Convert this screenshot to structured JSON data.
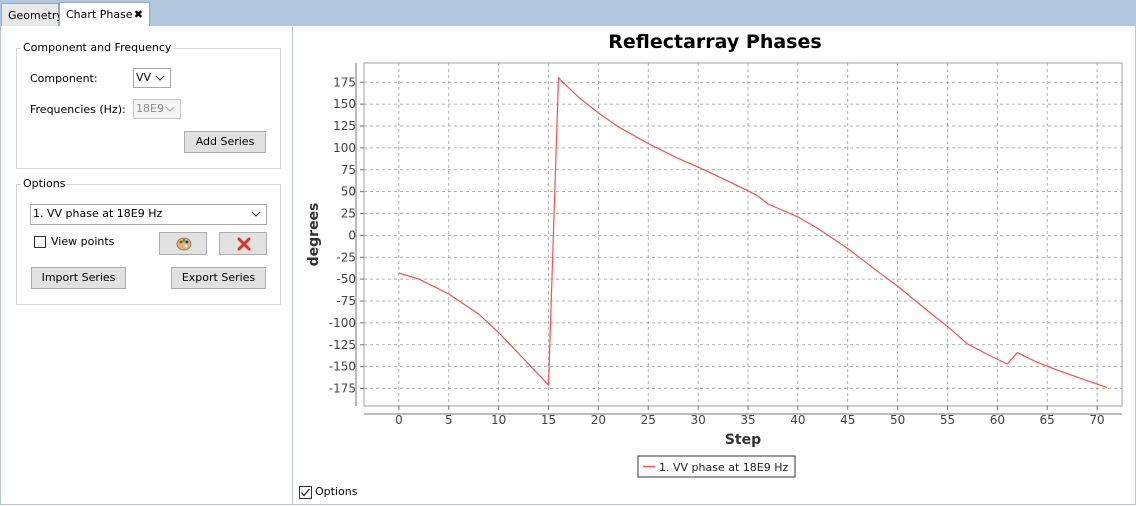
{
  "tabs": [
    {
      "label": "Geometry"
    },
    {
      "label": "Chart Phase",
      "close": "✖"
    }
  ],
  "left_panel": {
    "component_frequency": {
      "title": "Component and Frequency",
      "component_label": "Component:",
      "component_value": "VV",
      "frequencies_label": "Frequencies (Hz):",
      "frequencies_value": "18E9",
      "add_series_label": "Add Series"
    },
    "options": {
      "title": "Options",
      "series_select_value": "1. VV phase at 18E9 Hz",
      "view_points_label": "View points",
      "view_points_checked": false,
      "palette_icon": "palette-icon",
      "delete_icon": "delete-x-icon",
      "import_label": "Import Series",
      "export_label": "Export Series"
    }
  },
  "footer": {
    "options_label": "Options",
    "options_checked": true
  },
  "chart_data": {
    "type": "line",
    "title": "Reflectarray Phases",
    "xlabel": "Step",
    "ylabel": "degrees",
    "xlim": [
      -3.5,
      72.5
    ],
    "ylim": [
      -195,
      197
    ],
    "xticks": [
      0,
      5,
      10,
      15,
      20,
      25,
      30,
      35,
      40,
      45,
      50,
      55,
      60,
      65,
      70
    ],
    "yticks": [
      175,
      150,
      125,
      100,
      75,
      50,
      25,
      0,
      -25,
      -50,
      -75,
      -100,
      -125,
      -150,
      -175
    ],
    "grid": true,
    "legend": "bottom-center",
    "color": "#ff4d4d",
    "series": [
      {
        "name": "1. VV phase at 18E9 Hz",
        "x": [
          0,
          2,
          5,
          8,
          10,
          13,
          15,
          16,
          18,
          20,
          22,
          25,
          28,
          30,
          33,
          35,
          36,
          37,
          40,
          42,
          45,
          48,
          50,
          53,
          55,
          57,
          59,
          61,
          62,
          64,
          66,
          68,
          70,
          71
        ],
        "y": [
          -43,
          -50,
          -67,
          -90,
          -111,
          -147,
          -171,
          180,
          158,
          140,
          124,
          105,
          88,
          78,
          62,
          51,
          45,
          36,
          21,
          8,
          -15,
          -41,
          -58,
          -86,
          -104,
          -124,
          -136,
          -147,
          -134,
          -145,
          -154,
          -162,
          -170,
          -174
        ]
      }
    ]
  }
}
